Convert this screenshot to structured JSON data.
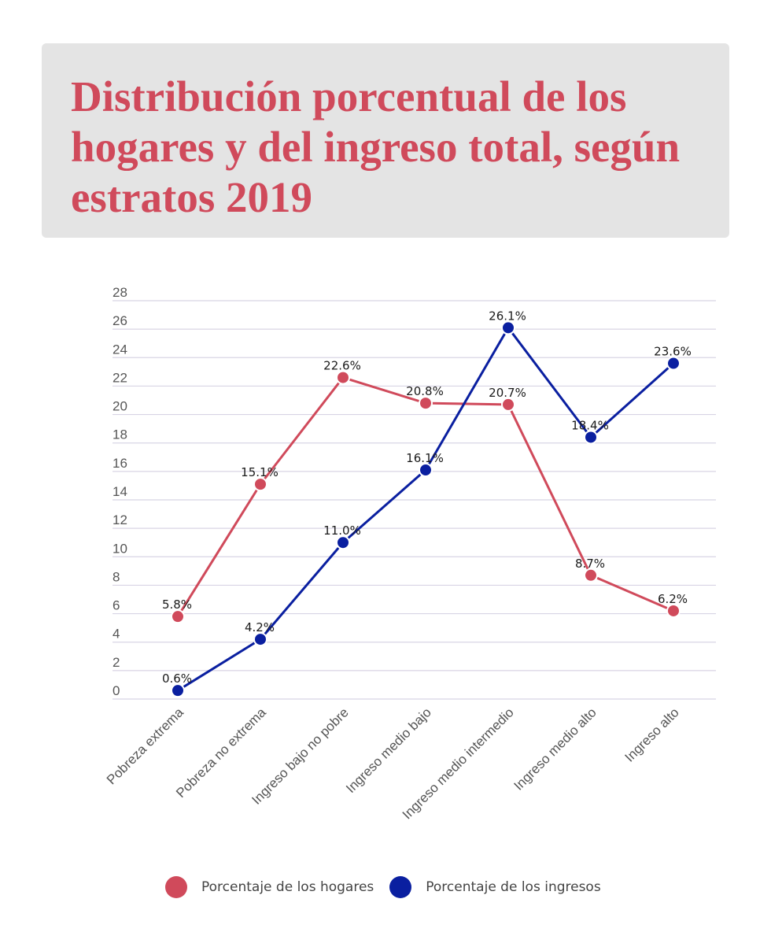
{
  "title": "Distribución porcentual de los hogares y del ingreso total, según estratos 2019",
  "colors": {
    "hogares": "#d04a5b",
    "ingresos": "#0a1fa0",
    "grid": "#d8d4e4",
    "title_bg": "#e4e4e4"
  },
  "chart_data": {
    "type": "line",
    "categories": [
      "Pobreza extrema",
      "Pobreza no extrema",
      "Ingreso bajo no pobre",
      "Ingreso medio bajo",
      "Ingreso medio intermedio",
      "Ingreso medio alto",
      "Ingreso alto"
    ],
    "series": [
      {
        "name": "Porcentaje de los hogares",
        "values": [
          5.8,
          15.1,
          22.6,
          20.8,
          20.7,
          8.7,
          6.2
        ],
        "labels": [
          "5.8%",
          "15.1%",
          "22.6%",
          "20.8%",
          "20.7%",
          "8.7%",
          "6.2%"
        ],
        "color": "#d04a5b"
      },
      {
        "name": "Porcentaje de los ingresos",
        "values": [
          0.6,
          4.2,
          11.0,
          16.1,
          26.1,
          18.4,
          23.6
        ],
        "labels": [
          "0.6%",
          "4.2%",
          "11.0%",
          "16.1%",
          "26.1%",
          "18.4%",
          "23.6%"
        ],
        "color": "#0a1fa0"
      }
    ],
    "yticks": [
      "0",
      "2",
      "4",
      "6",
      "8",
      "10",
      "12",
      "14",
      "16",
      "18",
      "20",
      "22",
      "24",
      "26",
      "28"
    ],
    "ylim": [
      0,
      28
    ],
    "grid": true,
    "legend_position": "bottom"
  }
}
